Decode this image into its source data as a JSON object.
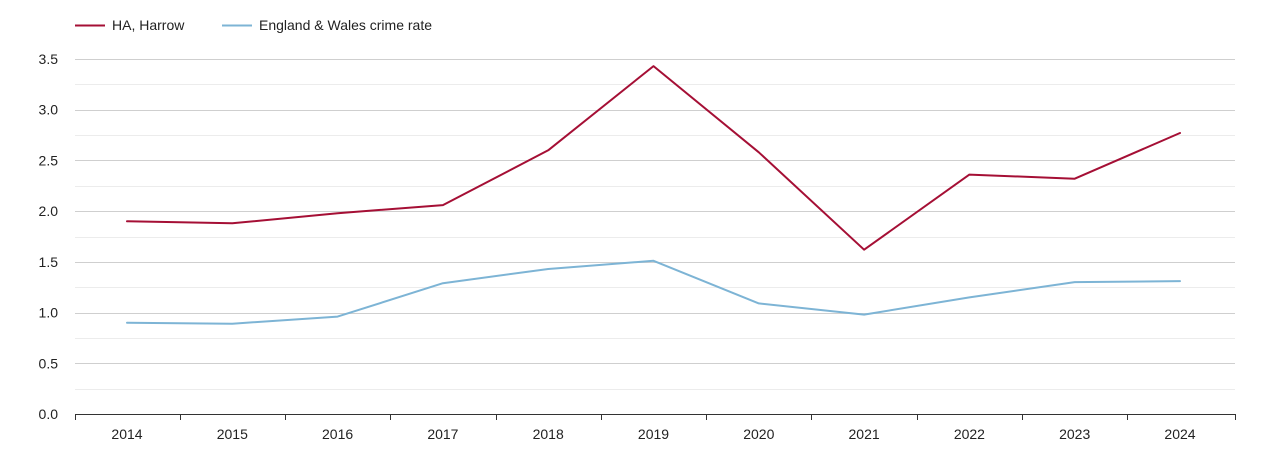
{
  "chart_data": {
    "type": "line",
    "title": "",
    "xlabel": "",
    "ylabel": "",
    "x": [
      "2014",
      "2015",
      "2016",
      "2017",
      "2018",
      "2019",
      "2020",
      "2021",
      "2022",
      "2023",
      "2024"
    ],
    "ylim": [
      0,
      3.5
    ],
    "y_ticks": [
      "0.0",
      "0.5",
      "1.0",
      "1.5",
      "2.0",
      "2.5",
      "3.0",
      "3.5"
    ],
    "grid": true,
    "legend_position": "top-left",
    "series": [
      {
        "name": "HA, Harrow",
        "color": "#a50f35",
        "values": [
          1.9,
          1.88,
          1.98,
          2.06,
          2.6,
          3.43,
          2.58,
          1.62,
          2.36,
          2.32,
          2.77
        ]
      },
      {
        "name": "England & Wales crime rate",
        "color": "#7db4d5",
        "values": [
          0.9,
          0.89,
          0.96,
          1.29,
          1.43,
          1.51,
          1.09,
          0.98,
          1.15,
          1.3,
          1.31
        ]
      }
    ]
  }
}
